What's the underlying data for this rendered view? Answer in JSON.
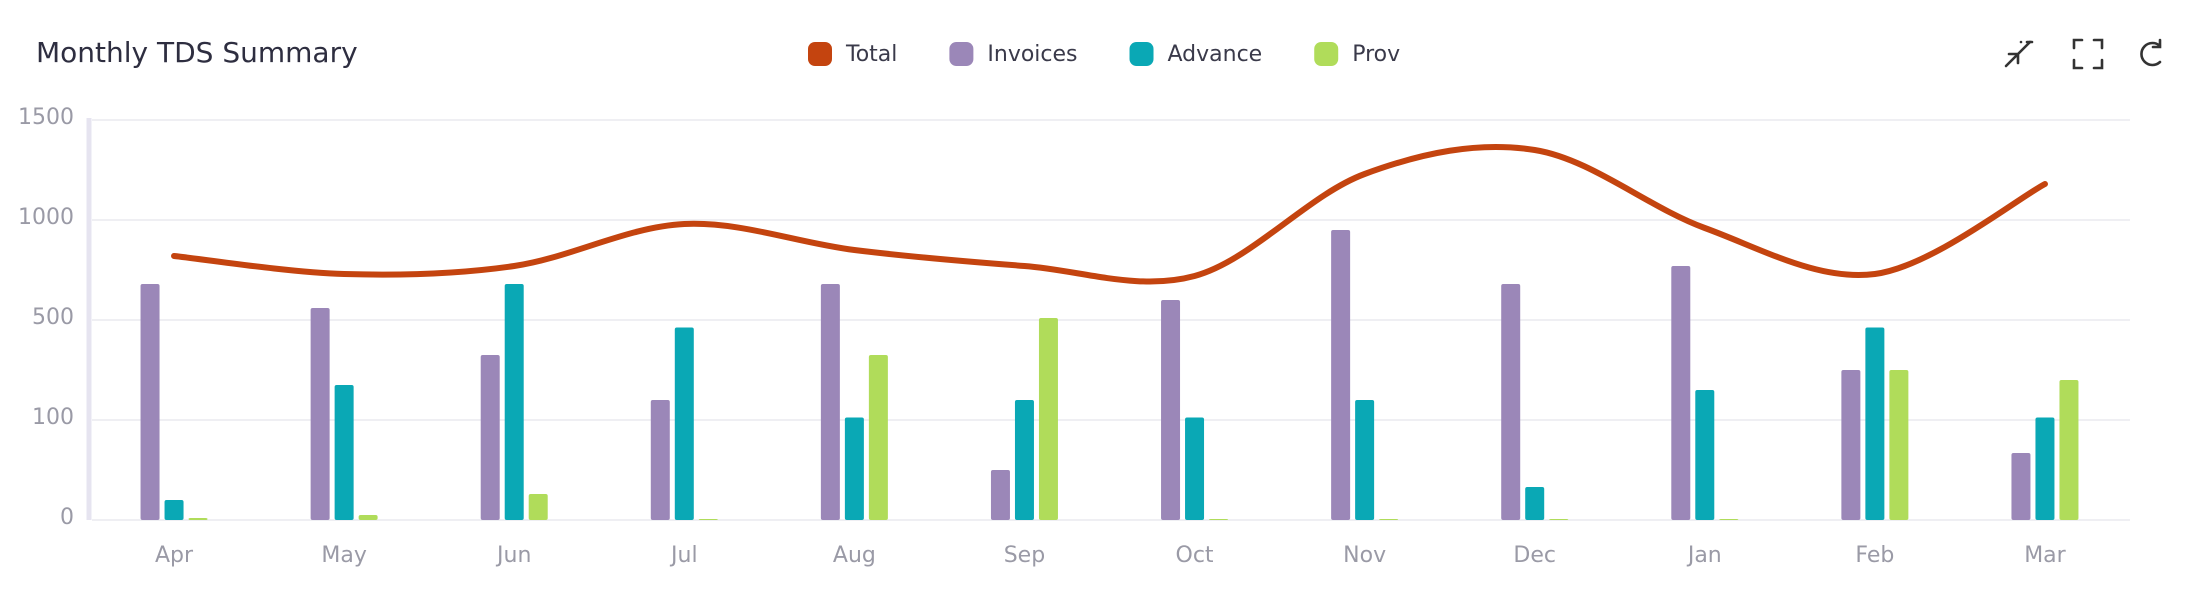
{
  "chart_data": {
    "type": "bar",
    "title": "Monthly TDS Summary",
    "categories": [
      "Apr",
      "May",
      "Jun",
      "Jul",
      "Aug",
      "Sep",
      "Oct",
      "Nov",
      "Dec",
      "Jan",
      "Feb",
      "Mar"
    ],
    "series": [
      {
        "name": "Total",
        "color": "#c4440f",
        "type": "line",
        "smooth": true,
        "values": [
          820,
          730,
          770,
          980,
          850,
          770,
          720,
          1230,
          1350,
          960,
          730,
          1180
        ]
      },
      {
        "name": "Invoices",
        "color": "#9b87b8",
        "values": [
          680,
          560,
          360,
          180,
          680,
          50,
          600,
          950,
          680,
          770,
          300,
          67
        ]
      },
      {
        "name": "Advance",
        "color": "#0aa8b5",
        "values": [
          20,
          240,
          680,
          470,
          110,
          180,
          110,
          180,
          33,
          220,
          470,
          110
        ]
      },
      {
        "name": "Prov",
        "color": "#b0dc5a",
        "values": [
          2,
          5,
          26,
          1,
          360,
          510,
          1,
          1,
          1,
          1,
          300,
          260
        ]
      }
    ],
    "ylim": [
      0,
      1500
    ],
    "yticks": [
      0,
      100,
      500,
      1000,
      1500
    ],
    "yscale": "tick-spaced",
    "grid": true,
    "legend": "top"
  }
}
